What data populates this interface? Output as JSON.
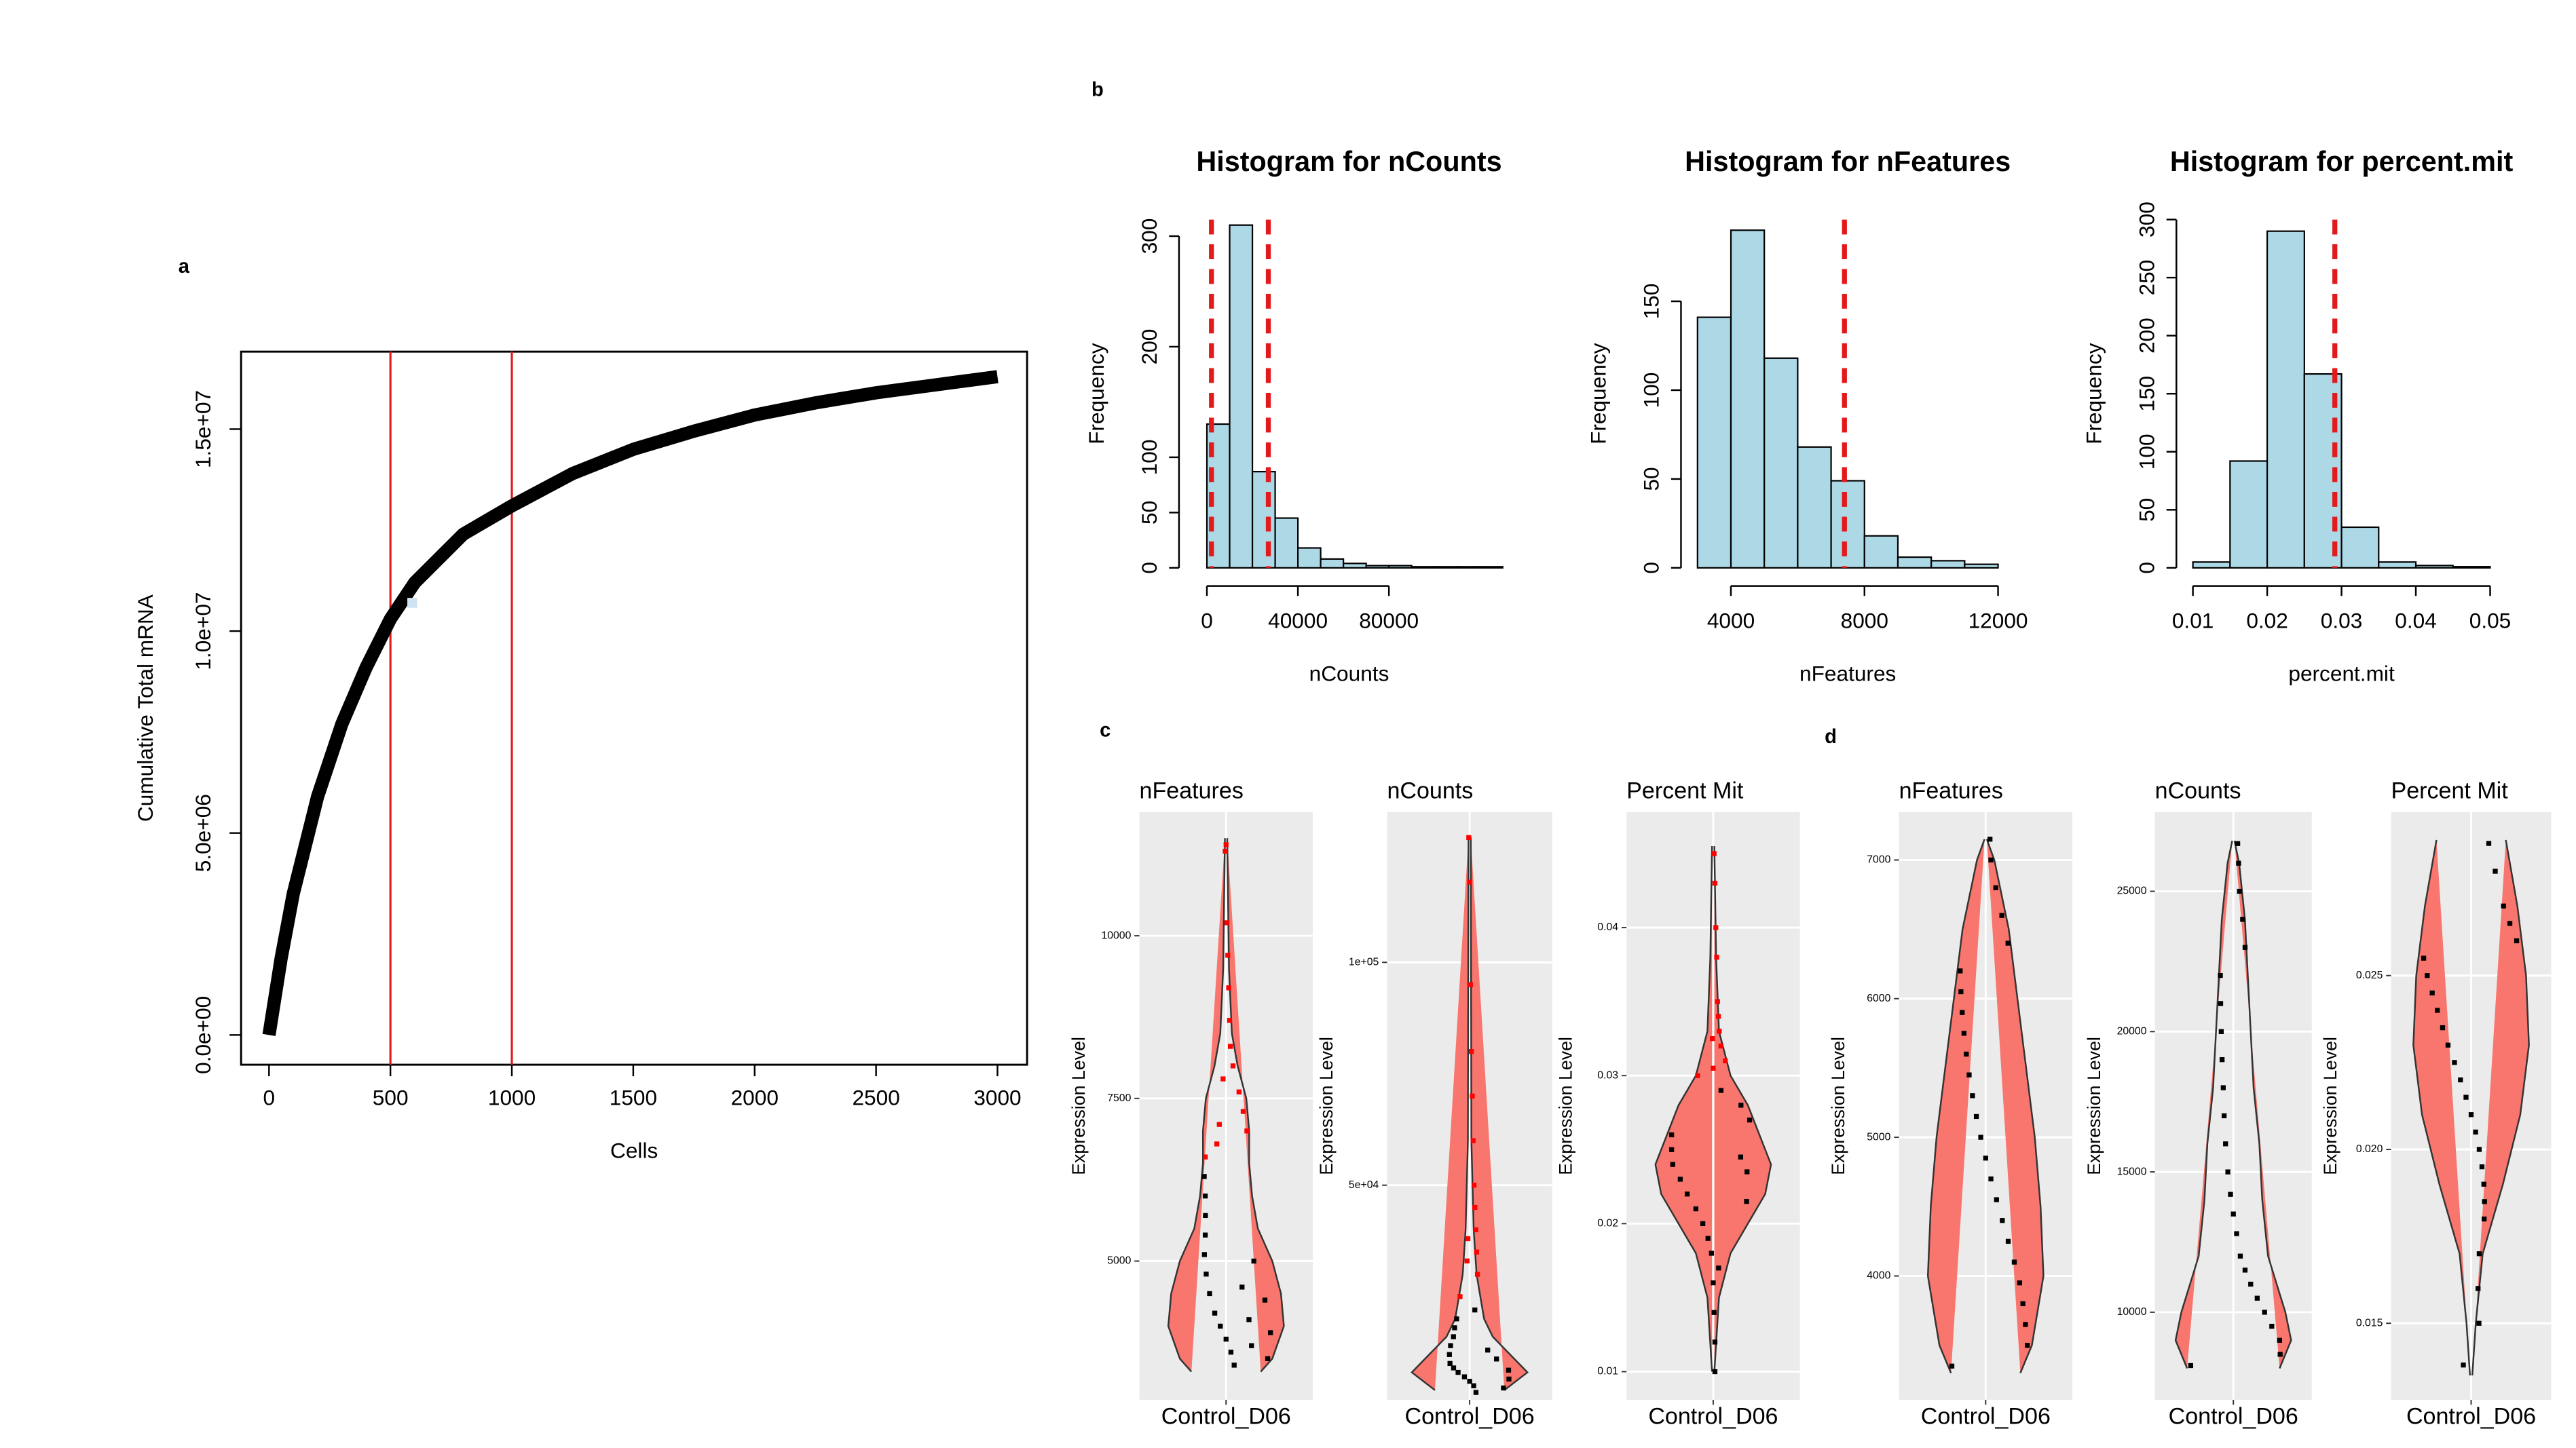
{
  "chart_data": [
    {
      "type": "line",
      "panel": "a",
      "xlabel": "Cells",
      "ylabel": "Cumulative Total mRNA",
      "x": [
        0,
        50,
        100,
        200,
        300,
        400,
        500,
        600,
        800,
        1000,
        1250,
        1500,
        1750,
        2000,
        2250,
        2500,
        2750,
        3000
      ],
      "values": [
        0,
        1900000,
        3500000,
        5900000,
        7700000,
        9100000,
        10300000,
        11200000,
        12400000,
        13100000,
        13900000,
        14500000,
        14950000,
        15350000,
        15650000,
        15900000,
        16100000,
        16300000
      ],
      "color": "#000000",
      "xlim": [
        -115,
        3122
      ],
      "ylim": [
        -736000,
        16920000
      ],
      "xticks": [
        0,
        500,
        1000,
        1500,
        2000,
        2500,
        3000
      ],
      "yticks": [
        {
          "value": 0,
          "label": "0.0e+00"
        },
        {
          "value": 5000000,
          "label": "5.0e+06"
        },
        {
          "value": 10000000,
          "label": "1.0e+07"
        },
        {
          "value": 15000000,
          "label": "1.5e+07"
        }
      ],
      "vlines": [
        500,
        1000
      ],
      "vline_color": "#e31a1c",
      "highlight_point": {
        "x": 590,
        "y": 10700000,
        "color": "#cfe3f3"
      }
    },
    {
      "type": "histogram",
      "panel": "b",
      "title": "Histogram for nCounts",
      "xlabel": "nCounts",
      "ylabel": "Frequency",
      "bins": [
        0,
        10000,
        20000,
        30000,
        40000,
        50000,
        60000,
        70000,
        80000,
        90000,
        100000,
        110000,
        120000,
        130000
      ],
      "values": [
        130,
        310,
        87,
        45,
        18,
        8,
        4,
        2,
        2,
        1,
        1,
        1,
        1
      ],
      "color": "#add8e6",
      "xlim": [
        -5000,
        130000
      ],
      "ylim": [
        0,
        315
      ],
      "xticks": [
        0,
        40000,
        80000
      ],
      "yticks": [
        0,
        50,
        100,
        200,
        300
      ],
      "vlines": [
        2000,
        27000
      ],
      "vline_color": "#e31a1c"
    },
    {
      "type": "histogram",
      "title": "Histogram for nFeatures",
      "xlabel": "nFeatures",
      "ylabel": "Frequency",
      "bins": [
        3000,
        4000,
        5000,
        6000,
        7000,
        8000,
        9000,
        10000,
        11000,
        12000
      ],
      "values": [
        141,
        190,
        118,
        68,
        49,
        18,
        6,
        4,
        2
      ],
      "color": "#add8e6",
      "xlim": [
        3000,
        12000
      ],
      "ylim": [
        0,
        196
      ],
      "xticks": [
        4000,
        8000,
        12000
      ],
      "yticks": [
        0,
        50,
        100,
        150
      ],
      "vlines": [
        7400
      ],
      "vline_color": "#e31a1c"
    },
    {
      "type": "histogram",
      "title": "Histogram for percent.mit",
      "xlabel": "percent.mit",
      "ylabel": "Frequency",
      "bins": [
        0.01,
        0.015,
        0.02,
        0.025,
        0.03,
        0.035,
        0.04,
        0.045,
        0.05
      ],
      "values": [
        5,
        92,
        290,
        167,
        35,
        5,
        2,
        1
      ],
      "color": "#add8e6",
      "xlim": [
        0.01,
        0.05
      ],
      "ylim": [
        0,
        300
      ],
      "xticks": [
        0.01,
        0.02,
        0.03,
        0.04,
        0.05
      ],
      "yticks": [
        0,
        50,
        100,
        150,
        200,
        250,
        300
      ],
      "vlines": [
        0.0291
      ],
      "vline_color": "#e31a1c"
    },
    {
      "type": "violin",
      "panel": "c",
      "title": "nFeatures",
      "ylabel": "Expression Level",
      "categories": [
        "Control_D06"
      ],
      "color": "#f8766d",
      "ylim": [
        2868,
        11900
      ],
      "yticks": [
        5000,
        7500,
        10000
      ],
      "levels": [
        3300,
        3500,
        4000,
        4500,
        5000,
        5500,
        6000,
        6500,
        7000,
        7500,
        8000,
        8500,
        9500,
        11500
      ],
      "widths": [
        0.6,
        0.8,
        1.0,
        0.95,
        0.8,
        0.55,
        0.45,
        0.4,
        0.4,
        0.35,
        0.2,
        0.1,
        0.05,
        0.02
      ],
      "points": [
        {
          "color": "#ff0000",
          "values": [
            6600,
            7000,
            7300,
            7600,
            8000,
            8300,
            8700,
            9200,
            9700,
            10200,
            11400,
            11300,
            7800,
            7100,
            6800
          ]
        },
        {
          "color": "#000000",
          "values": [
            3400,
            3600,
            3800,
            4000,
            4200,
            4500,
            4800,
            5100,
            5400,
            5700,
            6000,
            6300,
            3500,
            3900,
            4400,
            5000,
            3700,
            4100,
            4600
          ]
        }
      ]
    },
    {
      "type": "violin",
      "title": "nCounts",
      "ylabel": "Expression Level",
      "categories": [
        "Control_D06"
      ],
      "color": "#f8766d",
      "ylim": [
        1850,
        133700
      ],
      "yticks": [
        {
          "value": 50000,
          "label": "5e+04"
        },
        {
          "value": 100000,
          "label": "1e+05"
        }
      ],
      "levels": [
        4000,
        8000,
        12000,
        16000,
        20000,
        30000,
        40000,
        60000,
        128000
      ],
      "widths": [
        0.6,
        1.0,
        0.7,
        0.4,
        0.25,
        0.12,
        0.07,
        0.03,
        0.02
      ],
      "points": [
        {
          "color": "#ff0000",
          "values": [
            25000,
            30000,
            35000,
            40000,
            45000,
            50000,
            60000,
            70000,
            80000,
            95000,
            118000,
            128000,
            38000,
            33000
          ]
        },
        {
          "color": "#000000",
          "values": [
            3500,
            5000,
            6000,
            7000,
            8000,
            9000,
            10000,
            12000,
            14000,
            16000,
            18000,
            20000,
            4500,
            6500,
            8500,
            11000,
            13000,
            22000
          ]
        }
      ]
    },
    {
      "type": "violin",
      "title": "Percent Mit",
      "ylabel": "Expression Level",
      "categories": [
        "Control_D06"
      ],
      "color": "#f8766d",
      "ylim": [
        0.0081,
        0.0478
      ],
      "yticks": [
        0.01,
        0.02,
        0.03,
        0.04
      ],
      "levels": [
        0.01,
        0.015,
        0.018,
        0.02,
        0.022,
        0.024,
        0.026,
        0.028,
        0.03,
        0.033,
        0.038,
        0.0455
      ],
      "widths": [
        0.02,
        0.1,
        0.3,
        0.6,
        0.9,
        1.0,
        0.8,
        0.6,
        0.3,
        0.1,
        0.05,
        0.02
      ],
      "points": [
        {
          "color": "#ff0000",
          "values": [
            0.03,
            0.031,
            0.032,
            0.033,
            0.034,
            0.035,
            0.038,
            0.04,
            0.043,
            0.045,
            0.0305,
            0.0325
          ]
        },
        {
          "color": "#000000",
          "values": [
            0.012,
            0.014,
            0.016,
            0.018,
            0.019,
            0.02,
            0.021,
            0.022,
            0.023,
            0.024,
            0.025,
            0.026,
            0.027,
            0.028,
            0.0215,
            0.0235,
            0.0245,
            0.017,
            0.029,
            0.01
          ]
        }
      ]
    },
    {
      "type": "violin",
      "panel": "d",
      "title": "nFeatures",
      "ylabel": "Expression Level",
      "categories": [
        "Control_D06"
      ],
      "color": "#f8766d",
      "ylim": [
        3107,
        7345
      ],
      "yticks": [
        4000,
        5000,
        6000,
        7000
      ],
      "levels": [
        3300,
        3500,
        4000,
        4500,
        5000,
        5500,
        6000,
        6500,
        7000,
        7150
      ],
      "widths": [
        0.6,
        0.8,
        1.0,
        0.95,
        0.85,
        0.7,
        0.55,
        0.4,
        0.15,
        0.02
      ],
      "points": [
        {
          "color": "#000000",
          "values": [
            3350,
            3500,
            3650,
            3800,
            3950,
            4100,
            4250,
            4400,
            4550,
            4700,
            4850,
            5000,
            5150,
            5300,
            5450,
            5600,
            5750,
            5900,
            6050,
            6200,
            6400,
            6600,
            6800,
            7000,
            7150
          ]
        }
      ]
    },
    {
      "type": "violin",
      "title": "nCounts",
      "ylabel": "Expression Level",
      "categories": [
        "Control_D06"
      ],
      "color": "#f8766d",
      "ylim": [
        6880,
        27820
      ],
      "yticks": [
        10000,
        15000,
        20000,
        25000
      ],
      "levels": [
        8000,
        9000,
        10000,
        11000,
        12000,
        13000,
        14000,
        16000,
        18000,
        20000,
        22000,
        24000,
        26000,
        26800
      ],
      "widths": [
        0.8,
        1.0,
        0.9,
        0.75,
        0.6,
        0.55,
        0.5,
        0.45,
        0.35,
        0.3,
        0.25,
        0.2,
        0.1,
        0.02
      ],
      "points": [
        {
          "color": "#000000",
          "values": [
            8100,
            8500,
            9000,
            9500,
            10000,
            10500,
            11000,
            11500,
            12000,
            12800,
            13500,
            14200,
            15000,
            16000,
            17000,
            18000,
            19000,
            20000,
            21000,
            22000,
            23000,
            24000,
            25000,
            26000,
            26700
          ]
        }
      ]
    },
    {
      "type": "violin",
      "title": "Percent Mit",
      "ylabel": "Expression Level",
      "categories": [
        "Control_D06"
      ],
      "color": "#f8766d",
      "ylim": [
        0.0128,
        0.0297
      ],
      "yticks": [
        0.015,
        {
          "value": 0.02,
          "label": "0.020"
        },
        0.025
      ],
      "levels": [
        0.0135,
        0.015,
        0.017,
        0.019,
        0.021,
        0.023,
        0.025,
        0.027,
        0.0289
      ],
      "widths": [
        0.02,
        0.08,
        0.2,
        0.55,
        0.85,
        1.0,
        0.95,
        0.8,
        0.6
      ],
      "points": [
        {
          "color": "#000000",
          "values": [
            0.0138,
            0.015,
            0.016,
            0.017,
            0.018,
            0.0185,
            0.019,
            0.0195,
            0.02,
            0.0205,
            0.021,
            0.0215,
            0.022,
            0.0225,
            0.023,
            0.0235,
            0.024,
            0.0245,
            0.025,
            0.0255,
            0.026,
            0.0265,
            0.027,
            0.028,
            0.0288
          ]
        }
      ]
    }
  ]
}
